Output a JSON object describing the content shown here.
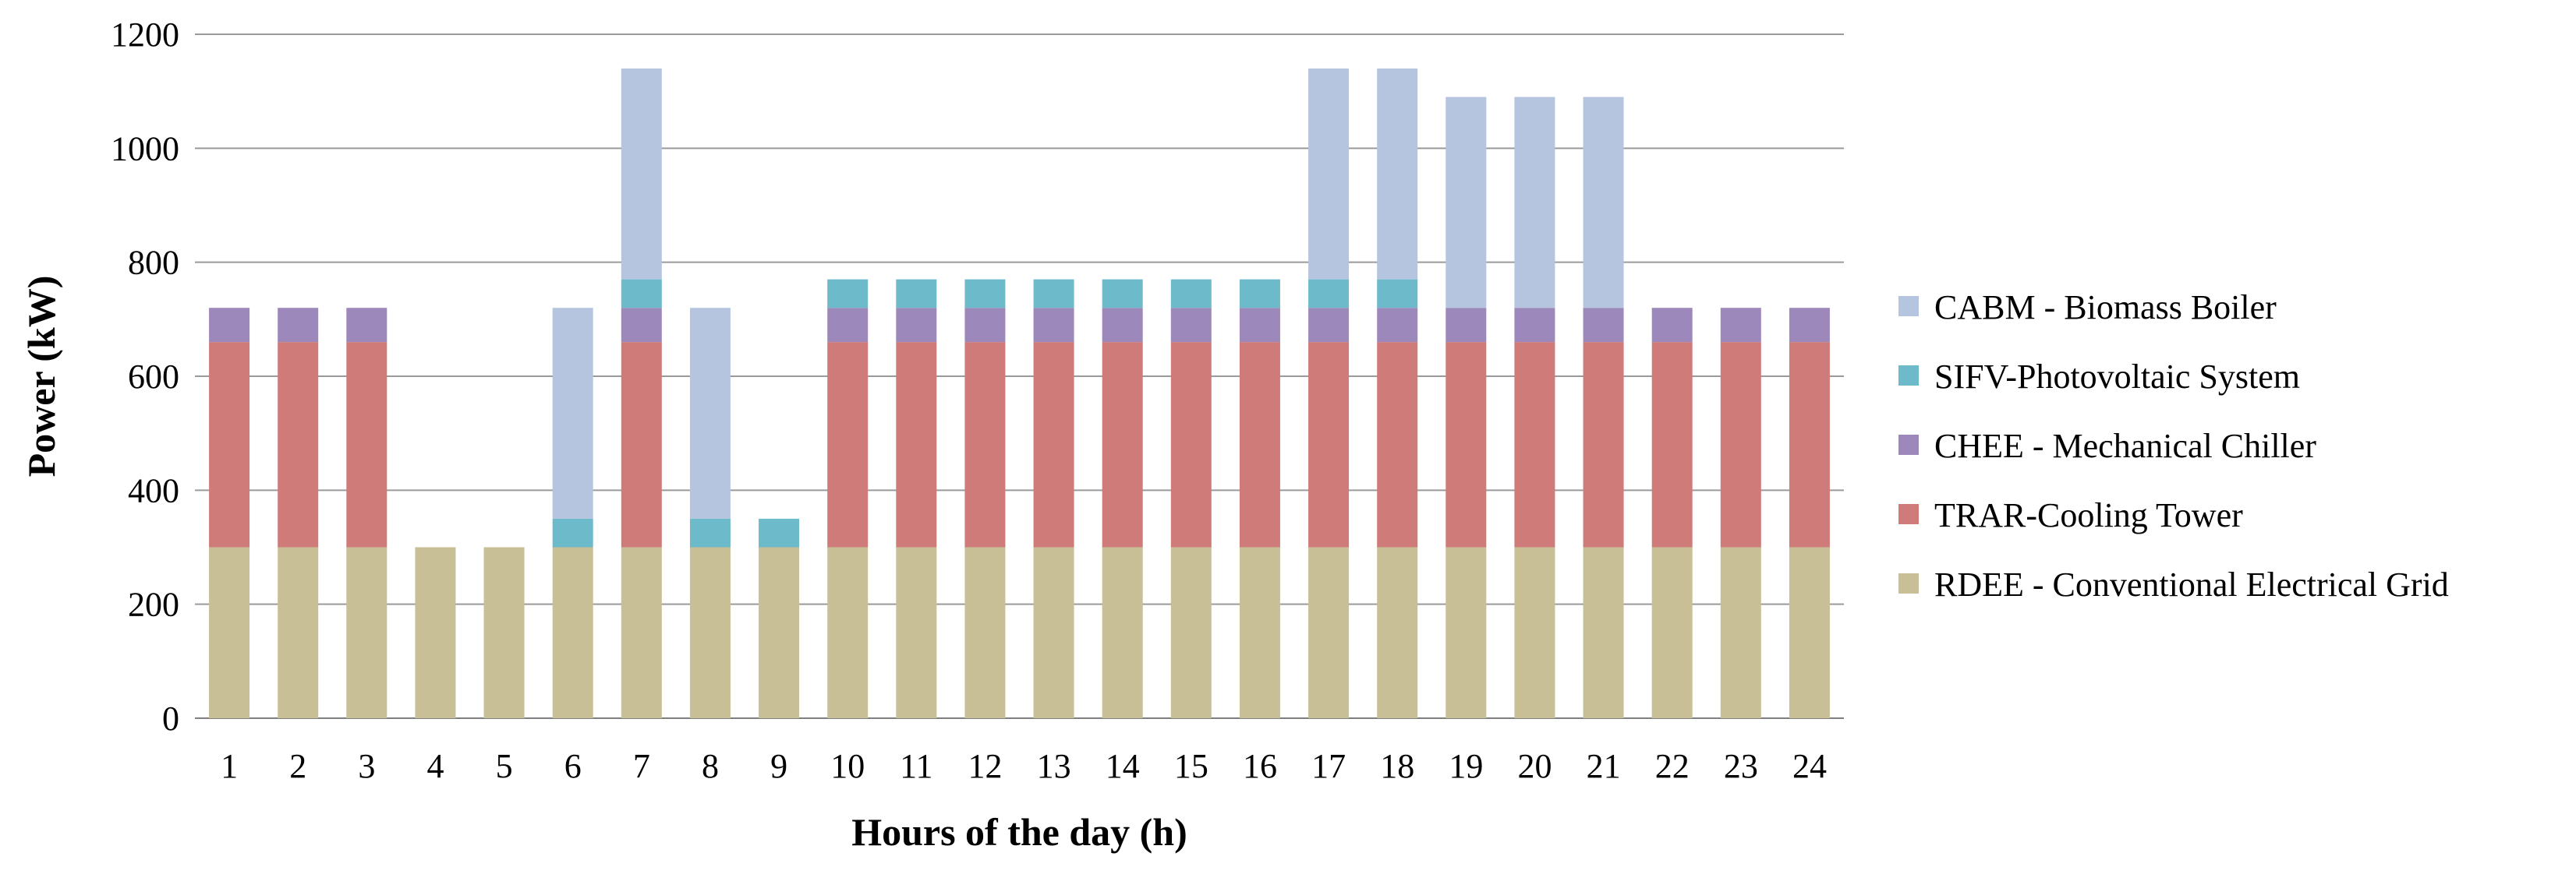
{
  "chart_data": {
    "type": "bar",
    "stacked": true,
    "title": "",
    "xlabel": "Hours of the day (h)",
    "ylabel": "Power (kW)",
    "ylim": [
      0,
      1200
    ],
    "yticks": [
      0,
      200,
      400,
      600,
      800,
      1000,
      1200
    ],
    "grid": "horizontal",
    "legend_position": "right",
    "categories": [
      "1",
      "2",
      "3",
      "4",
      "5",
      "6",
      "7",
      "8",
      "9",
      "10",
      "11",
      "12",
      "13",
      "14",
      "15",
      "16",
      "17",
      "18",
      "19",
      "20",
      "21",
      "22",
      "23",
      "24"
    ],
    "series": [
      {
        "name": "RDEE - Conventional Electrical Grid",
        "color": "#C8BF96",
        "values": [
          300,
          300,
          300,
          300,
          300,
          300,
          300,
          300,
          300,
          300,
          300,
          300,
          300,
          300,
          300,
          300,
          300,
          300,
          300,
          300,
          300,
          300,
          300,
          300
        ]
      },
      {
        "name": "TRAR-Cooling Tower",
        "color": "#CF7B7A",
        "values": [
          360,
          360,
          360,
          0,
          0,
          0,
          360,
          0,
          0,
          360,
          360,
          360,
          360,
          360,
          360,
          360,
          360,
          360,
          360,
          360,
          360,
          360,
          360,
          360
        ]
      },
      {
        "name": "CHEE - Mechanical Chiller",
        "color": "#9D88BB",
        "values": [
          60,
          60,
          60,
          0,
          0,
          0,
          60,
          0,
          0,
          60,
          60,
          60,
          60,
          60,
          60,
          60,
          60,
          60,
          60,
          60,
          60,
          60,
          60,
          60
        ]
      },
      {
        "name": "SIFV-Photovoltaic System",
        "color": "#6DBACB",
        "values": [
          0,
          0,
          0,
          0,
          0,
          50,
          50,
          50,
          50,
          50,
          50,
          50,
          50,
          50,
          50,
          50,
          50,
          50,
          0,
          0,
          0,
          0,
          0,
          0
        ]
      },
      {
        "name": "CABM - Biomass Boiler",
        "color": "#B5C5DF",
        "values": [
          0,
          0,
          0,
          0,
          0,
          370,
          370,
          370,
          0,
          0,
          0,
          0,
          0,
          0,
          0,
          0,
          370,
          370,
          370,
          370,
          370,
          0,
          0,
          0
        ]
      }
    ],
    "legend_order": [
      "CABM - Biomass Boiler",
      "SIFV-Photovoltaic System",
      "CHEE - Mechanical Chiller",
      "TRAR-Cooling Tower",
      "RDEE - Conventional Electrical Grid"
    ]
  }
}
